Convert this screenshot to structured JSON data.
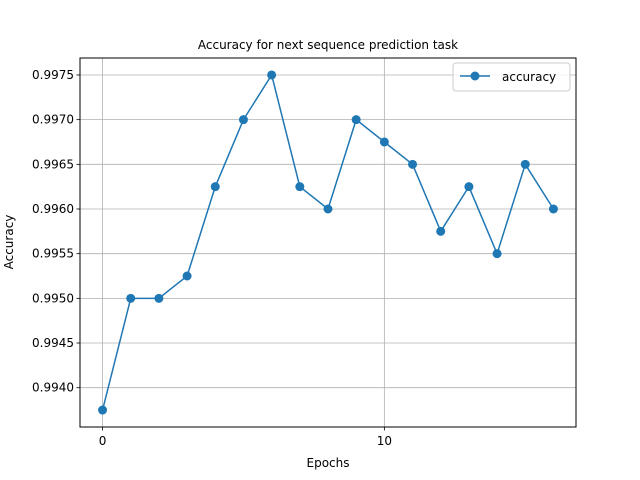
{
  "chart_data": {
    "type": "line",
    "title": "Accuracy for next sequence prediction task",
    "xlabel": "Epochs",
    "ylabel": "Accuracy",
    "x": [
      0,
      1,
      2,
      3,
      4,
      5,
      6,
      7,
      8,
      9,
      10,
      11,
      12,
      13,
      14,
      15,
      16
    ],
    "series": [
      {
        "name": "accuracy",
        "values": [
          0.99375,
          0.995,
          0.995,
          0.99525,
          0.99625,
          0.997,
          0.9975,
          0.99625,
          0.996,
          0.997,
          0.99675,
          0.9965,
          0.99575,
          0.99625,
          0.9955,
          0.9965,
          0.996
        ],
        "color": "#1f77b4",
        "marker": "circle"
      }
    ],
    "xticks": [
      0,
      10
    ],
    "xtick_labels": [
      "0",
      "10"
    ],
    "yticks": [
      0.994,
      0.9945,
      0.995,
      0.9955,
      0.996,
      0.9965,
      0.997,
      0.9975
    ],
    "ytick_labels": [
      "0.9940",
      "0.9945",
      "0.9950",
      "0.9955",
      "0.9960",
      "0.9965",
      "0.9970",
      "0.9975"
    ],
    "xlim": [
      -0.8,
      16.8
    ],
    "ylim": [
      0.99356,
      0.99769
    ],
    "grid": true,
    "legend_position": "top-right"
  }
}
